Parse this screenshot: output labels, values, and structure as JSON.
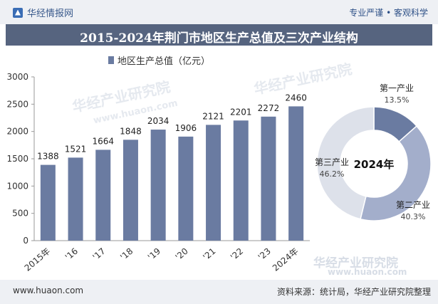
{
  "header": {
    "brand": "华经情报网",
    "tagline": "专业严谨 • 客观科学",
    "title": "2015-2024年荆门市地区生产总值及三次产业结构"
  },
  "footer": {
    "site": "www.huaon.com",
    "source": "资料来源：统计局，华经产业研究院整理"
  },
  "watermark": {
    "text": "华经产业研究院",
    "url": "www.huaon.com"
  },
  "colors": {
    "bar": "#6a7ba1",
    "title_band": "#56647f",
    "primary": "#6a7ba1",
    "secondary": "#a3aecb",
    "tertiary": "#dde1ea"
  },
  "chart_data": [
    {
      "type": "bar",
      "legend": "地区生产总值（亿元）",
      "categories": [
        "2015年",
        "'16",
        "'17",
        "'18",
        "'19",
        "'20",
        "'21",
        "'22",
        "'23",
        "2024年"
      ],
      "series": [
        {
          "name": "地区生产总值（亿元）",
          "values": [
            1388,
            1521,
            1664,
            1848,
            2034,
            1906,
            2121,
            2201,
            2272,
            2460
          ]
        }
      ],
      "ylim": [
        0,
        3000
      ],
      "yticks": [
        0,
        500,
        1000,
        1500,
        2000,
        2500,
        3000
      ],
      "grid": false,
      "legend_position": "top"
    },
    {
      "type": "pie",
      "center_label": "2024年",
      "labels": [
        "第一产业",
        "第二产业",
        "第三产业"
      ],
      "values": [
        13.5,
        40.3,
        46.2
      ],
      "value_labels": [
        "13.5%",
        "40.3%",
        "46.2%"
      ],
      "colors": [
        "#6a7ba1",
        "#a3aecb",
        "#dde1ea"
      ]
    }
  ]
}
